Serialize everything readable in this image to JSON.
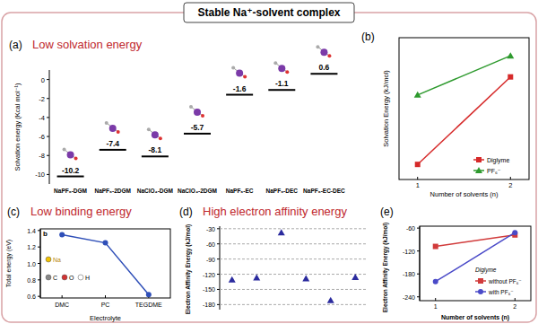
{
  "title": "Stable Na⁺-solvent complex",
  "chart_data": [
    {
      "panel_label": "(a)",
      "title": "Low solvation energy",
      "type": "level",
      "y_label": "Solvation energy (Kcal mol⁻¹)",
      "categories": [
        "NaPF₆-DGM",
        "NaPF₆-2DGM",
        "NaClO₄-DGM",
        "NaClO₄-2DGM",
        "NaPF₆-EC",
        "NaPF₆-DEC",
        "NaPF₆-EC-DEC"
      ],
      "values": [
        -10.2,
        -7.4,
        -8.1,
        -5.7,
        -1.6,
        -1.1,
        0.6
      ],
      "ylim": [
        -11,
        1
      ],
      "yticks": [
        0,
        -2,
        -4,
        -6,
        -8,
        -10
      ],
      "data_labels": true,
      "color": "#000000"
    },
    {
      "panel_label": "(b)",
      "type": "line",
      "x_label": "Number of solvents (n)",
      "y_label": "Solvation Energy (kJ/mol)",
      "x": [
        1,
        2
      ],
      "xlim": [
        0.8,
        2.2
      ],
      "xticks": [
        1,
        2
      ],
      "ylim": [
        -52,
        -5
      ],
      "tick_labels": "x",
      "legend": "lower right",
      "series": [
        {
          "name": "Diglyme",
          "color": "#d62a2a",
          "marker": "square",
          "values": [
            -47,
            -18
          ]
        },
        {
          "name": "PF₆⁻",
          "color": "#2e9a2e",
          "marker": "triangle",
          "values": [
            -24,
            -11
          ]
        }
      ]
    },
    {
      "panel_label": "(c)",
      "title": "Low binding energy",
      "subtitle": "b",
      "annotations": [
        "Na",
        "C",
        "O",
        "H"
      ],
      "type": "line",
      "x_label": "Electrolyte",
      "y_label": "Total energy (eV)",
      "categories": [
        "DMC",
        "PC",
        "TEGDME"
      ],
      "values": [
        1.35,
        1.25,
        0.62
      ],
      "ylim": [
        0.58,
        1.42
      ],
      "yticks": [
        0.6,
        0.8,
        {
          "value": 1,
          "label": "1.0"
        },
        1.2,
        1.4
      ],
      "color": "#2f4fb8",
      "marker": "circle"
    },
    {
      "panel_label": "(d)",
      "title": "High electron affinity energy",
      "type": "scatter",
      "y_label": "Electron Affinity Energy (kJ/mol)",
      "x": [
        1,
        2,
        3,
        4,
        5,
        6
      ],
      "xlim": [
        0.5,
        6.5
      ],
      "values": [
        -131,
        -127,
        -38,
        -129,
        -172,
        -126
      ],
      "ylim": [
        -190,
        -25
      ],
      "yticks": [
        -30,
        -60,
        -90,
        -120,
        -150,
        -180
      ],
      "grid": true,
      "tick_labels": "y",
      "marker": "triangle",
      "color": "#2b2b9e"
    },
    {
      "panel_label": "(e)",
      "type": "line",
      "annotation": "Diglyme",
      "x_label": "Number of solvents (n)",
      "y_label": "Electron Affinity Energy (kJ/mol)",
      "x": [
        1,
        2
      ],
      "xlim": [
        0.8,
        2.2
      ],
      "xticks": [
        1,
        2
      ],
      "ylim": [
        -250,
        -55
      ],
      "yticks": [
        -60,
        -120,
        -180,
        -240
      ],
      "legend": "lower right",
      "series": [
        {
          "name": "without PF₆⁻",
          "color": "#d13b3b",
          "marker": "square",
          "values": [
            -108,
            -78
          ]
        },
        {
          "name": "with PF₆⁻",
          "color": "#4a4ac8",
          "marker": "circle",
          "values": [
            -200,
            -72
          ]
        }
      ]
    }
  ]
}
